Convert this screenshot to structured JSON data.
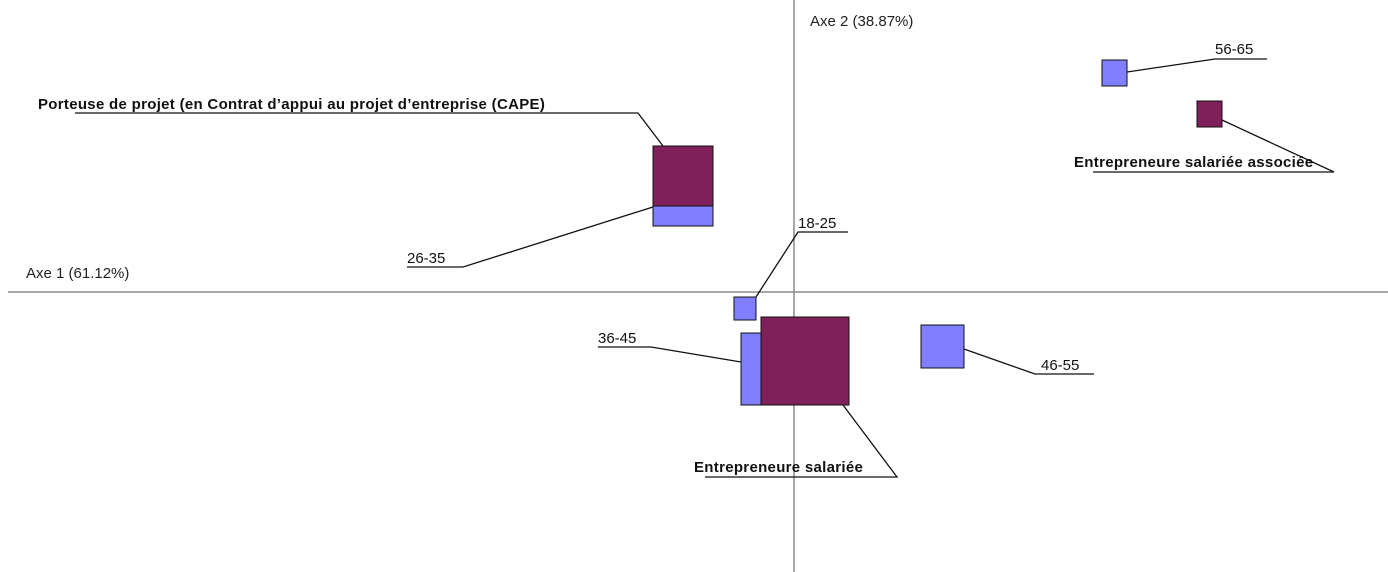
{
  "chart_data": {
    "type": "scatter",
    "title": "",
    "xlabel": "Axe 1 (61.12%)",
    "ylabel": "Axe 2 (38.87%)",
    "xlim": [
      -1,
      1
    ],
    "ylim": [
      -1,
      1
    ],
    "grid": false,
    "colors": {
      "age": "#8080ff",
      "status": "#80205a"
    },
    "series": [
      {
        "group": "age",
        "color": "#8080ff",
        "points": [
          {
            "label": "18-25",
            "x": -0.11,
            "y": -0.06,
            "size": 1
          },
          {
            "label": "26-35",
            "x": -0.26,
            "y": 0.3,
            "size": 2
          },
          {
            "label": "36-45",
            "x": -0.06,
            "y": -0.27,
            "size": 2
          },
          {
            "label": "46-55",
            "x": 0.3,
            "y": -0.2,
            "size": 2
          },
          {
            "label": "56-65",
            "x": 0.62,
            "y": 0.84,
            "size": 1
          }
        ]
      },
      {
        "group": "status",
        "color": "#80205a",
        "points": [
          {
            "label": "Porteuse de projet (en Contrat d’appui au projet d’entreprise (CAPE)",
            "x": -0.26,
            "y": 0.41,
            "size": 3
          },
          {
            "label": "Entrepreneure salariée",
            "x": 0.01,
            "y": -0.27,
            "size": 4
          },
          {
            "label": "Entrepreneure salariée associée",
            "x": 0.67,
            "y": 0.63,
            "size": 1
          }
        ]
      }
    ]
  }
}
